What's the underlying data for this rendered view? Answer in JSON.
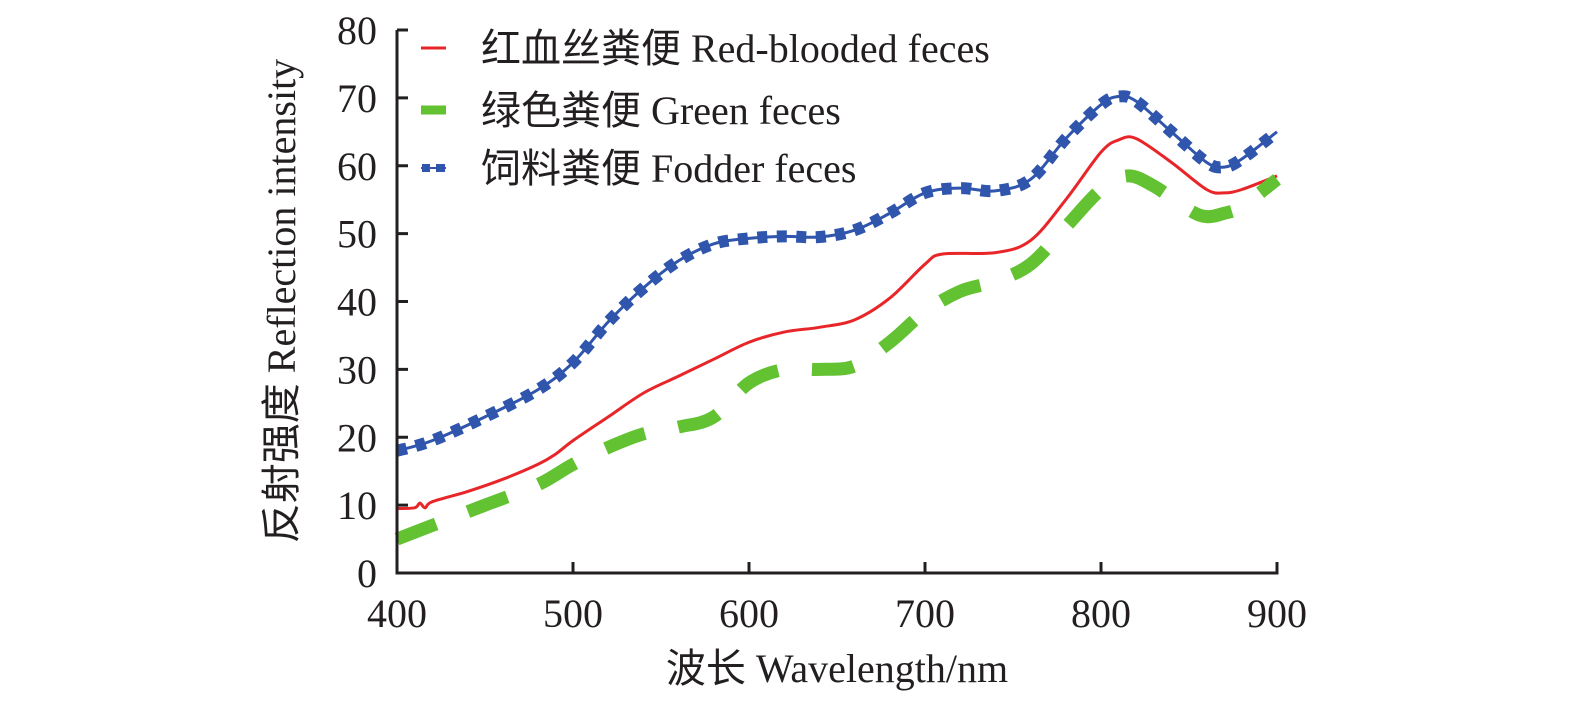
{
  "chart_data": {
    "type": "line",
    "title": "",
    "xlabel": "波长 Wavelength/nm",
    "ylabel": "反射强度 Reflection intensity",
    "xlim": [
      400,
      900
    ],
    "ylim": [
      0,
      80
    ],
    "xticks": [
      400,
      500,
      600,
      700,
      800,
      900
    ],
    "yticks": [
      0,
      10,
      20,
      30,
      40,
      50,
      60,
      70,
      80
    ],
    "grid": false,
    "legend_position": "top-left",
    "series": [
      {
        "name": "红血丝粪便 Red-blooded feces",
        "style": "solid",
        "color": "#e8262a",
        "x": [
          400,
          410,
          413,
          416,
          420,
          440,
          460,
          480,
          490,
          500,
          520,
          540,
          560,
          580,
          600,
          620,
          640,
          660,
          680,
          700,
          710,
          740,
          760,
          780,
          800,
          810,
          820,
          840,
          860,
          870,
          880,
          900
        ],
        "y": [
          9.5,
          9.6,
          10.3,
          9.6,
          10.5,
          12,
          13.8,
          16,
          17.5,
          19.5,
          23,
          26.5,
          29,
          31.5,
          34,
          35.5,
          36.2,
          37.3,
          40.5,
          45.5,
          47,
          47.2,
          49,
          55,
          62,
          63.8,
          64,
          60.5,
          56.5,
          56,
          56.5,
          58.5
        ]
      },
      {
        "name": "绿色粪便 Green feces",
        "style": "dashed",
        "color": "#62c232",
        "x": [
          400,
          420,
          450,
          480,
          500,
          520,
          540,
          560,
          580,
          600,
          620,
          640,
          660,
          680,
          700,
          720,
          740,
          760,
          780,
          800,
          815,
          830,
          850,
          860,
          870,
          880,
          900
        ],
        "y": [
          5,
          7,
          10,
          13,
          16,
          18.5,
          20.5,
          21.5,
          23,
          28,
          30,
          30,
          30.5,
          34,
          38.5,
          41.5,
          43,
          45.5,
          51,
          56.5,
          58.5,
          57,
          53.5,
          52.5,
          53,
          54,
          58
        ]
      },
      {
        "name": "饲料粪便 Fodder feces",
        "style": "dotted-square",
        "color": "#2f55ac",
        "x": [
          400,
          420,
          450,
          480,
          500,
          520,
          540,
          560,
          580,
          600,
          620,
          640,
          660,
          680,
          700,
          720,
          740,
          760,
          780,
          800,
          810,
          820,
          840,
          860,
          870,
          880,
          900
        ],
        "y": [
          18,
          19.5,
          23,
          27,
          31,
          37,
          42,
          46,
          48.5,
          49.3,
          49.6,
          49.5,
          50.5,
          53,
          56,
          56.7,
          56.3,
          58,
          64,
          69,
          70.2,
          69.5,
          65,
          60.5,
          59.8,
          61,
          65
        ]
      }
    ]
  }
}
